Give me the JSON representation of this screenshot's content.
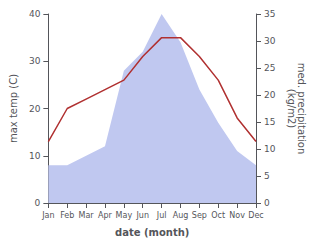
{
  "chart_data": {
    "type": "line",
    "xlabel": "date (month)",
    "ylabel": "max temp (C)",
    "y2label": "med. precipitation\n(kg/m2)",
    "categories": [
      "Jan",
      "Feb",
      "Mar",
      "Apr",
      "May",
      "Jun",
      "Jul",
      "Aug",
      "Sep",
      "Oct",
      "Nov",
      "Dec"
    ],
    "series": [
      {
        "type": "area",
        "color": "#c0c8f0",
        "values": [
          8,
          8,
          10,
          12,
          28,
          32,
          40,
          34,
          24,
          17,
          11,
          8
        ]
      },
      {
        "type": "line",
        "color": "#b03030",
        "values": [
          13,
          20,
          22,
          24,
          26,
          31,
          35,
          35,
          31,
          26,
          18,
          13
        ]
      }
    ],
    "ylim": [
      0,
      40
    ],
    "yticks": [
      0,
      10,
      20,
      30,
      40
    ],
    "y2lim": [
      0,
      35
    ],
    "y2ticks": [
      0,
      5,
      10,
      15,
      20,
      25,
      30,
      35
    ],
    "grid": false
  }
}
